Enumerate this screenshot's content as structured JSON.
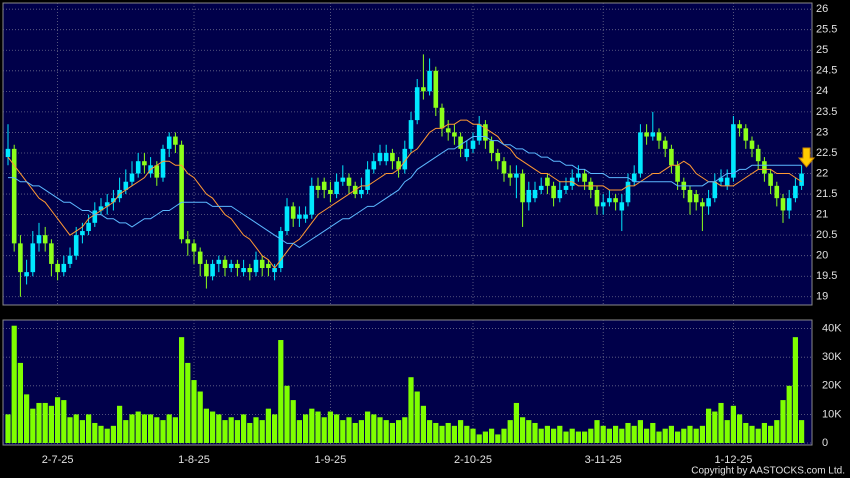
{
  "chart_data": [
    {
      "type": "candlestick",
      "open": [
        22.4,
        22.6,
        20.3,
        19.5,
        19.6,
        20.3,
        20.5,
        20.3,
        19.8,
        19.6,
        19.8,
        20.0,
        20.5,
        20.6,
        20.8,
        21.1,
        21.2,
        21.3,
        21.4,
        21.6,
        21.8,
        22.0,
        22.3,
        22.0,
        22.2,
        21.9,
        22.6,
        22.9,
        22.7,
        20.4,
        20.3,
        20.1,
        19.8,
        19.5,
        19.8,
        19.9,
        19.7,
        19.8,
        19.6,
        19.7,
        19.6,
        19.9,
        19.8,
        19.6,
        19.7,
        20.6,
        21.2,
        20.9,
        20.9,
        21.0,
        21.7,
        21.8,
        21.6,
        21.5,
        21.8,
        21.9,
        21.7,
        21.5,
        21.6,
        22.1,
        22.3,
        22.3,
        22.5,
        22.3,
        22.1,
        22.6,
        23.3,
        24.1,
        24.0,
        24.5,
        23.6,
        23.1,
        23.0,
        22.9,
        22.4,
        22.6,
        22.8,
        23.2,
        22.8,
        22.5,
        22.3,
        22.0,
        21.9,
        22.0,
        21.3,
        21.4,
        21.6,
        21.9,
        21.7,
        21.4,
        21.6,
        21.7,
        21.9,
        22.0,
        21.8,
        21.6,
        21.2,
        21.3,
        21.4,
        21.1,
        21.3,
        21.8,
        22.0,
        23.0,
        22.9,
        23.0,
        22.8,
        22.6,
        22.2,
        21.8,
        21.6,
        21.5,
        21.3,
        21.2,
        21.4,
        21.8,
        21.7,
        21.9,
        23.2,
        23.1,
        22.8,
        22.6,
        22.3,
        22.0,
        21.7,
        21.4,
        21.1,
        21.4,
        21.7
      ],
      "high": [
        23.2,
        22.7,
        20.5,
        19.9,
        20.6,
        20.8,
        20.7,
        20.4,
        19.9,
        20.0,
        20.2,
        20.7,
        20.8,
        21.0,
        21.3,
        21.4,
        21.5,
        21.6,
        21.9,
        22.1,
        22.3,
        22.5,
        22.5,
        22.4,
        22.3,
        22.7,
        23.0,
        23.0,
        22.8,
        20.6,
        20.4,
        20.2,
        19.9,
        19.9,
        20.0,
        20.0,
        19.9,
        19.9,
        19.9,
        19.8,
        20.1,
        20.0,
        19.9,
        19.8,
        20.7,
        21.4,
        21.3,
        21.2,
        21.2,
        21.9,
        21.9,
        21.9,
        21.8,
        22.0,
        22.2,
        22.0,
        21.8,
        21.9,
        22.3,
        22.5,
        22.7,
        22.7,
        22.6,
        22.4,
        22.8,
        23.5,
        24.3,
        24.9,
        24.8,
        24.6,
        23.7,
        23.3,
        23.2,
        23.0,
        22.8,
        23.0,
        23.4,
        23.3,
        22.9,
        22.6,
        22.4,
        22.2,
        22.2,
        22.1,
        21.8,
        21.8,
        21.9,
        22.0,
        21.8,
        21.8,
        21.9,
        22.1,
        22.2,
        22.1,
        21.9,
        21.7,
        21.5,
        21.6,
        21.5,
        21.5,
        22.0,
        22.2,
        23.2,
        23.2,
        23.5,
        23.1,
        22.9,
        22.7,
        22.3,
        21.9,
        21.7,
        21.6,
        21.4,
        21.6,
        22.0,
        22.1,
        22.1,
        23.4,
        23.3,
        23.2,
        22.9,
        22.7,
        22.4,
        22.1,
        21.8,
        21.5,
        21.6,
        21.9,
        22.2
      ],
      "low": [
        22.2,
        20.1,
        19.0,
        19.3,
        19.5,
        20.1,
        20.1,
        19.5,
        19.4,
        19.5,
        19.7,
        19.9,
        20.3,
        20.5,
        20.7,
        21.0,
        21.0,
        21.1,
        21.3,
        21.5,
        21.7,
        21.9,
        22.0,
        21.9,
        21.7,
        21.8,
        22.4,
        22.5,
        20.3,
        20.0,
        19.8,
        19.5,
        19.2,
        19.4,
        19.6,
        19.5,
        19.6,
        19.5,
        19.5,
        19.4,
        19.5,
        19.5,
        19.5,
        19.4,
        19.6,
        20.5,
        20.7,
        20.7,
        20.8,
        20.9,
        21.4,
        21.4,
        21.3,
        21.4,
        21.7,
        21.5,
        21.4,
        21.4,
        21.5,
        22.0,
        22.2,
        22.2,
        22.1,
        21.9,
        22.0,
        22.5,
        23.2,
        23.8,
        23.9,
        23.4,
        22.9,
        22.8,
        22.7,
        22.4,
        22.3,
        22.5,
        22.7,
        22.6,
        22.3,
        22.1,
        21.8,
        21.7,
        21.4,
        20.7,
        21.1,
        21.3,
        21.5,
        21.5,
        21.2,
        21.3,
        21.5,
        21.6,
        21.8,
        21.6,
        21.4,
        21.0,
        21.0,
        21.2,
        21.1,
        20.6,
        21.2,
        21.7,
        21.9,
        22.7,
        22.8,
        22.6,
        22.4,
        22.0,
        21.6,
        21.4,
        21.0,
        21.1,
        20.6,
        21.0,
        21.3,
        21.7,
        21.6,
        21.8,
        22.9,
        22.6,
        22.4,
        22.1,
        21.8,
        21.5,
        21.2,
        20.8,
        20.9,
        21.3,
        21.6
      ],
      "close": [
        22.6,
        20.3,
        19.6,
        19.6,
        20.3,
        20.5,
        20.3,
        19.8,
        19.6,
        19.8,
        20.0,
        20.5,
        20.6,
        20.8,
        21.1,
        21.2,
        21.3,
        21.4,
        21.6,
        21.8,
        22.0,
        22.3,
        22.2,
        22.2,
        21.9,
        22.6,
        22.9,
        22.7,
        20.4,
        20.3,
        20.1,
        19.8,
        19.5,
        19.8,
        19.9,
        19.7,
        19.8,
        19.7,
        19.7,
        19.6,
        19.9,
        19.7,
        19.7,
        19.7,
        20.6,
        21.2,
        20.9,
        21.0,
        21.0,
        21.7,
        21.6,
        21.6,
        21.5,
        21.8,
        21.9,
        21.7,
        21.5,
        21.6,
        22.1,
        22.3,
        22.5,
        22.5,
        22.3,
        22.1,
        22.6,
        23.3,
        24.1,
        24.0,
        24.5,
        23.6,
        23.1,
        23.0,
        22.9,
        22.6,
        22.6,
        22.8,
        23.2,
        22.8,
        22.5,
        22.3,
        22.0,
        21.9,
        22.0,
        21.3,
        21.6,
        21.6,
        21.7,
        21.7,
        21.4,
        21.6,
        21.7,
        21.9,
        22.0,
        21.8,
        21.6,
        21.2,
        21.3,
        21.4,
        21.3,
        21.3,
        21.8,
        22.0,
        23.0,
        22.9,
        23.0,
        22.8,
        22.6,
        22.2,
        21.8,
        21.6,
        21.3,
        21.3,
        21.2,
        21.4,
        21.8,
        21.9,
        21.9,
        23.2,
        23.1,
        22.8,
        22.6,
        22.3,
        22.0,
        21.7,
        21.4,
        21.1,
        21.4,
        21.7,
        22.0
      ],
      "up_color": "#00e8ff",
      "down_color": "#8cff1a",
      "lines": [
        {
          "color": "#ff9933",
          "values": [
            22.4,
            22.2,
            22.0,
            21.8,
            21.6,
            21.4,
            21.3,
            21.1,
            20.9,
            20.7,
            20.5,
            20.6,
            20.7,
            20.9,
            21.0,
            21.1,
            21.2,
            21.3,
            21.5,
            21.6,
            21.7,
            21.8,
            21.9,
            22.1,
            22.2,
            22.3,
            22.3,
            22.2,
            22.2,
            22.0,
            21.9,
            21.7,
            21.5,
            21.4,
            21.2,
            21.0,
            20.9,
            20.7,
            20.5,
            20.4,
            20.2,
            20.0,
            19.9,
            19.7,
            19.9,
            20.1,
            20.3,
            20.4,
            20.6,
            20.8,
            21.0,
            21.1,
            21.2,
            21.3,
            21.4,
            21.5,
            21.6,
            21.7,
            21.7,
            21.8,
            21.9,
            22.0,
            22.0,
            22.1,
            22.3,
            22.5,
            22.6,
            22.8,
            23.0,
            23.1,
            23.1,
            23.2,
            23.2,
            23.3,
            23.3,
            23.2,
            23.2,
            23.1,
            23.0,
            22.9,
            22.7,
            22.6,
            22.4,
            22.3,
            22.2,
            22.1,
            22.0,
            22.0,
            21.9,
            21.8,
            21.8,
            21.8,
            21.7,
            21.7,
            21.7,
            21.7,
            21.7,
            21.6,
            21.6,
            21.6,
            21.7,
            21.7,
            21.8,
            21.9,
            22.0,
            22.0,
            22.1,
            22.2,
            22.2,
            22.3,
            22.2,
            22.0,
            21.9,
            21.8,
            21.8,
            21.7,
            21.7,
            21.7,
            21.8,
            21.9,
            22.0,
            22.1,
            22.1,
            22.1,
            22.0,
            22.0,
            22.0,
            21.9,
            21.8
          ]
        },
        {
          "color": "#5cb8ff",
          "values": [
            21.9,
            21.9,
            21.8,
            21.8,
            21.7,
            21.7,
            21.6,
            21.5,
            21.4,
            21.3,
            21.3,
            21.2,
            21.1,
            21.1,
            21.0,
            21.0,
            20.9,
            20.9,
            20.8,
            20.8,
            20.7,
            20.8,
            20.9,
            20.9,
            21.0,
            21.1,
            21.1,
            21.2,
            21.3,
            21.3,
            21.3,
            21.3,
            21.3,
            21.2,
            21.2,
            21.2,
            21.2,
            21.1,
            21.0,
            20.9,
            20.8,
            20.7,
            20.6,
            20.5,
            20.4,
            20.3,
            20.3,
            20.2,
            20.3,
            20.4,
            20.5,
            20.6,
            20.7,
            20.8,
            20.9,
            20.9,
            21.0,
            21.1,
            21.2,
            21.2,
            21.3,
            21.4,
            21.5,
            21.6,
            21.8,
            21.9,
            22.1,
            22.2,
            22.3,
            22.4,
            22.5,
            22.6,
            22.6,
            22.7,
            22.8,
            22.9,
            22.9,
            22.9,
            22.8,
            22.8,
            22.7,
            22.7,
            22.6,
            22.6,
            22.5,
            22.5,
            22.4,
            22.4,
            22.3,
            22.3,
            22.2,
            22.2,
            22.1,
            22.1,
            22.0,
            22.0,
            22.0,
            21.9,
            21.9,
            21.9,
            21.9,
            21.8,
            21.8,
            21.8,
            21.8,
            21.8,
            21.8,
            21.8,
            21.7,
            21.7,
            21.7,
            21.7,
            21.7,
            21.8,
            21.8,
            21.9,
            22.0,
            22.0,
            22.1,
            22.1,
            22.2,
            22.2,
            22.2,
            22.2,
            22.2,
            22.2,
            22.2,
            22.2,
            22.2
          ]
        }
      ],
      "ylim": [
        18.8,
        26.15
      ],
      "yticks": [
        19,
        19.5,
        20,
        20.5,
        21,
        21.5,
        22,
        22.5,
        23,
        23.5,
        24,
        24.5,
        25,
        25.5,
        26
      ],
      "grid": true
    },
    {
      "type": "bar",
      "categories": [
        null,
        null,
        null,
        null,
        null,
        null,
        null,
        null,
        "2-7-25",
        null,
        null,
        null,
        null,
        null,
        null,
        null,
        null,
        null,
        null,
        null,
        null,
        null,
        null,
        null,
        null,
        null,
        null,
        null,
        null,
        null,
        "1-8-25",
        null,
        null,
        null,
        null,
        null,
        null,
        null,
        null,
        null,
        null,
        null,
        null,
        null,
        null,
        null,
        null,
        null,
        null,
        null,
        null,
        null,
        "1-9-25",
        null,
        null,
        null,
        null,
        null,
        null,
        null,
        null,
        null,
        null,
        null,
        null,
        null,
        null,
        null,
        null,
        null,
        null,
        null,
        null,
        null,
        null,
        "2-10-25",
        null,
        null,
        null,
        null,
        null,
        null,
        null,
        null,
        null,
        null,
        null,
        null,
        null,
        null,
        null,
        null,
        null,
        null,
        null,
        null,
        "3-11-25",
        null,
        null,
        null,
        null,
        null,
        null,
        null,
        null,
        null,
        null,
        null,
        null,
        null,
        null,
        null,
        null,
        null,
        null,
        null,
        null,
        "1-12-25",
        null,
        null,
        null,
        null,
        null,
        null,
        null,
        null,
        null,
        null,
        null
      ],
      "values": [
        10000,
        41000,
        28000,
        17000,
        12000,
        14000,
        14000,
        13000,
        16000,
        15000,
        9000,
        10000,
        8000,
        10000,
        7000,
        6000,
        5000,
        6000,
        13000,
        8000,
        10000,
        11000,
        10000,
        10000,
        9000,
        8000,
        10000,
        9000,
        37000,
        28000,
        22000,
        18000,
        12000,
        11000,
        10000,
        8000,
        9000,
        8000,
        10000,
        7000,
        9000,
        8000,
        12000,
        10000,
        36000,
        20000,
        15000,
        8000,
        10000,
        12000,
        11000,
        9000,
        11000,
        10000,
        8000,
        9000,
        7000,
        8000,
        11000,
        10000,
        9000,
        8000,
        7000,
        8000,
        9000,
        23000,
        18000,
        13000,
        8000,
        7000,
        6000,
        7000,
        6000,
        8000,
        6000,
        5000,
        3000,
        4000,
        5000,
        3000,
        5000,
        8000,
        14000,
        9000,
        8000,
        7000,
        5000,
        6000,
        5000,
        6000,
        4000,
        5000,
        4000,
        4000,
        5000,
        8000,
        6000,
        5000,
        6000,
        5000,
        7000,
        6000,
        8000,
        5000,
        7000,
        4000,
        5000,
        6000,
        4000,
        5000,
        6000,
        5000,
        6000,
        12000,
        11000,
        14000,
        8000,
        13000,
        10000,
        7000,
        6000,
        5000,
        7000,
        6000,
        8000,
        15000,
        20000,
        37000,
        8000
      ],
      "color": "#7fff00",
      "ylim": [
        0,
        43000
      ],
      "yticks": [
        0,
        {
          "value": 10000,
          "label": "10K"
        },
        {
          "value": 20000,
          "label": "20K"
        },
        {
          "value": 30000,
          "label": "30K"
        },
        {
          "value": 40000,
          "label": "40K"
        }
      ],
      "grid": true
    }
  ],
  "copyright": "Copyright by AASTOCKS.com Ltd."
}
